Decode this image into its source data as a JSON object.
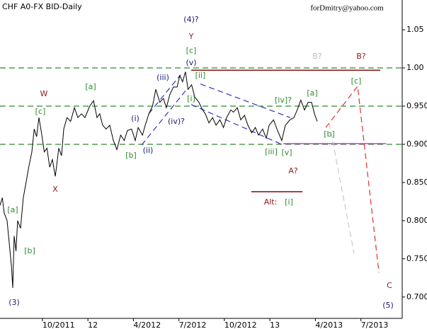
{
  "chart_data": {
    "type": "line",
    "title": "CHF A0-FX BID-Daily",
    "subtitle": "forDmitry@yahoo.com",
    "xlim": [
      2011.517,
      2013.727
    ],
    "ylim": [
      0.672,
      1.089
    ],
    "xticks": [
      {
        "value": 2011.75,
        "label": "10/2011"
      },
      {
        "value": 2012.0,
        "label": "12"
      },
      {
        "value": 2012.25,
        "label": "4/2012"
      },
      {
        "value": 2012.5,
        "label": "7/2012"
      },
      {
        "value": 2012.75,
        "label": "10/2012"
      },
      {
        "value": 2013.0,
        "label": "13"
      },
      {
        "value": 2013.25,
        "label": "4/2013"
      },
      {
        "value": 2013.5,
        "label": "7/2013"
      }
    ],
    "yticks": [
      1.05,
      {
        "value": 1.0,
        "label": "1.00"
      },
      {
        "value": 0.95,
        "label": "0.950"
      },
      {
        "value": 0.9,
        "label": "0.900"
      },
      {
        "value": 0.85,
        "label": "0.850"
      },
      {
        "value": 0.8,
        "label": "0.800"
      },
      {
        "value": 0.75,
        "label": "0.750"
      },
      {
        "value": 0.7,
        "label": "0.700"
      }
    ],
    "series": [
      {
        "color": "#000000",
        "x": [
          2011.517,
          2011.53,
          2011.54,
          2011.556,
          2011.568,
          2011.58,
          2011.587,
          2011.595,
          2011.605,
          2011.614,
          2011.63,
          2011.645,
          2011.66,
          2011.675,
          2011.692,
          2011.705,
          2011.718,
          2011.731,
          2011.745,
          2011.76,
          2011.775,
          2011.79,
          2011.805,
          2011.821,
          2011.84,
          2011.855,
          2011.867,
          2011.885,
          2011.905,
          2011.926,
          2011.945,
          2011.965,
          2011.984,
          2012.01,
          2012.031,
          2012.05,
          2012.065,
          2012.081,
          2012.1,
          2012.12,
          2012.14,
          2012.159,
          2012.18,
          2012.2,
          2012.217,
          2012.24,
          2012.26,
          2012.276,
          2012.3,
          2012.315,
          2012.335,
          2012.355,
          2012.373,
          2012.395,
          2012.415,
          2012.431,
          2012.45,
          2012.47,
          2012.49,
          2012.505,
          2012.52,
          2012.536,
          2012.55,
          2012.57,
          2012.587,
          2012.61,
          2012.63,
          2012.645,
          2012.665,
          2012.685,
          2012.704,
          2012.725,
          2012.745,
          2012.762,
          2012.785,
          2012.8,
          2012.821,
          2012.84,
          2012.86,
          2012.879,
          2012.9,
          2012.92,
          2012.937,
          2012.96,
          2012.98,
          2012.996,
          2013.02,
          2013.042,
          2013.065,
          2013.085,
          2013.11,
          2013.132,
          2013.15,
          2013.17,
          2013.19,
          2013.21,
          2013.229,
          2013.245,
          2013.26
        ],
        "values": [
          0.82,
          0.83,
          0.81,
          0.8,
          0.77,
          0.74,
          0.712,
          0.78,
          0.76,
          0.8,
          0.79,
          0.83,
          0.85,
          0.87,
          0.89,
          0.92,
          0.91,
          0.935,
          0.915,
          0.89,
          0.895,
          0.87,
          0.88,
          0.858,
          0.895,
          0.885,
          0.92,
          0.935,
          0.93,
          0.948,
          0.935,
          0.94,
          0.935,
          0.95,
          0.957,
          0.935,
          0.94,
          0.925,
          0.92,
          0.925,
          0.905,
          0.893,
          0.912,
          0.905,
          0.918,
          0.92,
          0.905,
          0.922,
          0.912,
          0.925,
          0.94,
          0.95,
          0.972,
          0.955,
          0.96,
          0.948,
          0.965,
          0.975,
          0.975,
          0.99,
          0.982,
          0.995,
          0.972,
          0.978,
          0.962,
          0.955,
          0.945,
          0.94,
          0.928,
          0.935,
          0.925,
          0.932,
          0.922,
          0.935,
          0.945,
          0.942,
          0.948,
          0.932,
          0.938,
          0.925,
          0.915,
          0.922,
          0.912,
          0.92,
          0.908,
          0.925,
          0.932,
          0.918,
          0.905,
          0.925,
          0.932,
          0.935,
          0.945,
          0.958,
          0.945,
          0.955,
          0.955,
          0.94,
          0.93
        ]
      }
    ],
    "overlays": [
      {
        "color": "#2e8b2e",
        "dash": true,
        "x": [
          2011.517,
          2013.727
        ],
        "values": [
          1.0,
          1.0
        ]
      },
      {
        "color": "#2e8b2e",
        "dash": true,
        "x": [
          2011.517,
          2013.727
        ],
        "values": [
          0.95,
          0.95
        ]
      },
      {
        "color": "#2e8b2e",
        "dash": true,
        "x": [
          2011.517,
          2013.727
        ],
        "values": [
          0.9,
          0.9
        ]
      },
      {
        "color": "#8b1a1a",
        "dash": false,
        "x": [
          2012.568,
          2013.606
        ],
        "values": [
          0.997,
          0.997
        ]
      },
      {
        "color": "#e040e0",
        "dash": false,
        "x": [
          2013.073,
          2013.638
        ],
        "values": [
          0.901,
          0.901
        ]
      },
      {
        "color": "#3030c0",
        "dash": true,
        "x": [
          2012.295,
          2012.536
        ],
        "values": [
          0.899,
          0.97
        ]
      },
      {
        "color": "#3030c0",
        "dash": true,
        "x": [
          2012.334,
          2012.509
        ],
        "values": [
          0.94,
          0.991
        ]
      },
      {
        "color": "#3030c0",
        "dash": true,
        "x": [
          2012.618,
          2013.112
        ],
        "values": [
          0.979,
          0.935
        ]
      },
      {
        "color": "#3030c0",
        "dash": true,
        "x": [
          2012.568,
          2013.073
        ],
        "values": [
          0.952,
          0.899
        ]
      },
      {
        "color": "#e03030",
        "dash": true,
        "x": [
          2013.307,
          2013.482,
          2013.599
        ],
        "values": [
          0.922,
          0.976,
          0.732
        ]
      },
      {
        "color": "#c8c8c8",
        "dash": true,
        "x": [
          2013.326,
          2013.463
        ],
        "values": [
          0.928,
          0.757
        ]
      },
      {
        "color": "#8b1a1a",
        "dash": false,
        "x": [
          2012.898,
          2013.179
        ],
        "values": [
          0.838,
          0.838
        ]
      }
    ],
    "annotations": [
      {
        "text": "(4)?",
        "color": "#1a1a7a"
      },
      {
        "text": "Y",
        "color": "#8b1a1a"
      },
      {
        "text": "[c]",
        "color": "#2e8b2e"
      },
      {
        "text": "(v)",
        "color": "#1a1a7a"
      },
      {
        "text": "[ii]",
        "color": "#2e8b2e"
      },
      {
        "text": "[i]",
        "color": "#2e8b2e"
      },
      {
        "text": "(iii)",
        "color": "#1a1a7a"
      },
      {
        "text": "(i)",
        "color": "#1a1a7a"
      },
      {
        "text": "(iv)?",
        "color": "#1a1a7a"
      },
      {
        "text": "(ii)",
        "color": "#1a1a7a"
      },
      {
        "text": "[b]",
        "color": "#2e8b2e"
      },
      {
        "text": "[a]",
        "color": "#2e8b2e"
      },
      {
        "text": "W",
        "color": "#8b1a1a"
      },
      {
        "text": "[c]",
        "color": "#2e8b2e"
      },
      {
        "text": "X",
        "color": "#8b1a1a"
      },
      {
        "text": "[a]",
        "color": "#2e8b2e"
      },
      {
        "text": "[b]",
        "color": "#2e8b2e"
      },
      {
        "text": "(3)",
        "color": "#1a1a7a"
      },
      {
        "text": "[iv]?",
        "color": "#2e8b2e"
      },
      {
        "text": "[a]",
        "color": "#2e8b2e"
      },
      {
        "text": "[c]",
        "color": "#2e8b2e"
      },
      {
        "text": "[b]",
        "color": "#2e8b2e"
      },
      {
        "text": "[iii]",
        "color": "#2e8b2e"
      },
      {
        "text": "[v]",
        "color": "#2e8b2e"
      },
      {
        "text": "A?",
        "color": "#8b1a1a"
      },
      {
        "text": "Alt:",
        "color": "#8b1a1a"
      },
      {
        "text": "[i]",
        "color": "#2e8b2e"
      },
      {
        "text": "B?",
        "color": "#c0c0c0"
      },
      {
        "text": "B?",
        "color": "#8b1a1a"
      },
      {
        "text": "C",
        "color": "#8b1a1a"
      },
      {
        "text": "(5)",
        "color": "#1a1a7a"
      }
    ]
  }
}
